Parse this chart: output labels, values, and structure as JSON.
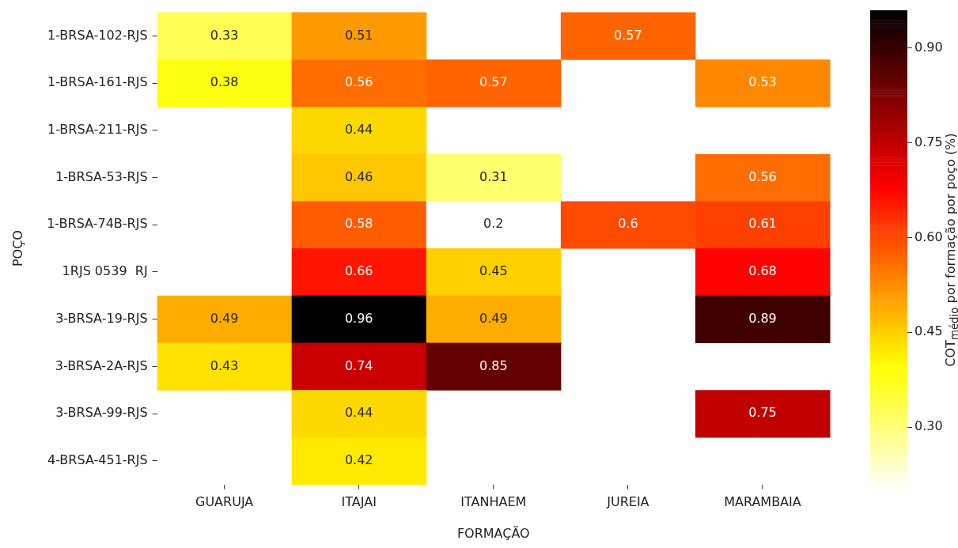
{
  "chart_data": {
    "type": "heatmap",
    "xlabel": "FORMAÇÃO",
    "ylabel": "POÇO",
    "clabel": "COT$_{médio}$ por formação por poço (%)",
    "categories": [
      "GUARUJA",
      "ITAJAI",
      "ITANHAEM",
      "JUREIA",
      "MARAMBAIA"
    ],
    "y_categories": [
      "1-BRSA-102-RJS",
      "1-BRSA-161-RJS",
      "1-BRSA-211-RJS",
      "1-BRSA-53-RJS",
      "1-BRSA-74B-RJS",
      "1RJS 0539  RJ",
      "3-BRSA-19-RJS",
      "3-BRSA-2A-RJS",
      "3-BRSA-99-RJS",
      "4-BRSA-451-RJS"
    ],
    "cells": [
      [
        0.33,
        0.51,
        null,
        0.57,
        null
      ],
      [
        0.38,
        0.56,
        0.57,
        null,
        0.53
      ],
      [
        null,
        0.44,
        null,
        null,
        null
      ],
      [
        null,
        0.46,
        0.31,
        null,
        0.56
      ],
      [
        null,
        0.58,
        0.2,
        0.6,
        0.61
      ],
      [
        null,
        0.66,
        0.45,
        null,
        0.68
      ],
      [
        0.49,
        0.96,
        0.49,
        null,
        0.89
      ],
      [
        0.43,
        0.74,
        0.85,
        null,
        null
      ],
      [
        null,
        0.44,
        null,
        null,
        0.75
      ],
      [
        null,
        0.42,
        null,
        null,
        null
      ]
    ],
    "clim": [
      0.2,
      0.96
    ],
    "cticks": [
      {
        "value": 0.3,
        "label": "0.30"
      },
      0.45,
      {
        "value": 0.6,
        "label": "0.60"
      },
      0.75,
      {
        "value": 0.9,
        "label": "0.90"
      }
    ],
    "data_labels": true,
    "grid": false
  }
}
